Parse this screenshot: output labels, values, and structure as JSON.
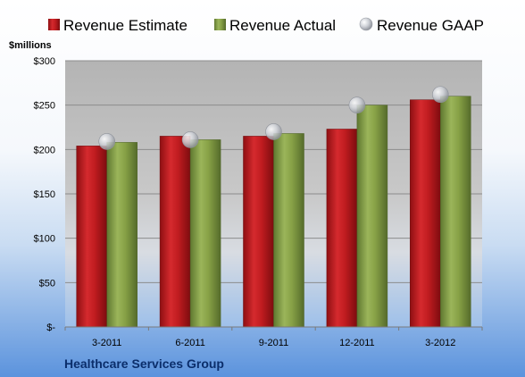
{
  "chart_data": {
    "type": "bar",
    "categories": [
      "3-2011",
      "6-2011",
      "9-2011",
      "12-2011",
      "3-2012"
    ],
    "series": [
      {
        "name": "Revenue Estimate",
        "kind": "bar",
        "color": "#c0181c",
        "values": [
          204,
          215,
          215,
          223,
          256
        ]
      },
      {
        "name": "Revenue Actual",
        "kind": "bar",
        "color": "#7f9a3e",
        "values": [
          208,
          211,
          218,
          250,
          260
        ]
      },
      {
        "name": "Revenue GAAP",
        "kind": "marker",
        "color": "#b8bcc4",
        "values": [
          209,
          211,
          220,
          250,
          262
        ]
      }
    ],
    "ylabel": "$millions",
    "ylim": [
      0,
      300
    ],
    "yticks": [
      0,
      50,
      100,
      150,
      200,
      250,
      300
    ],
    "ytick_labels": [
      "$-",
      "$50",
      "$100",
      "$150",
      "$200",
      "$250",
      "$300"
    ],
    "grid": true,
    "legend": "top",
    "footer": "Healthcare Services Group"
  }
}
